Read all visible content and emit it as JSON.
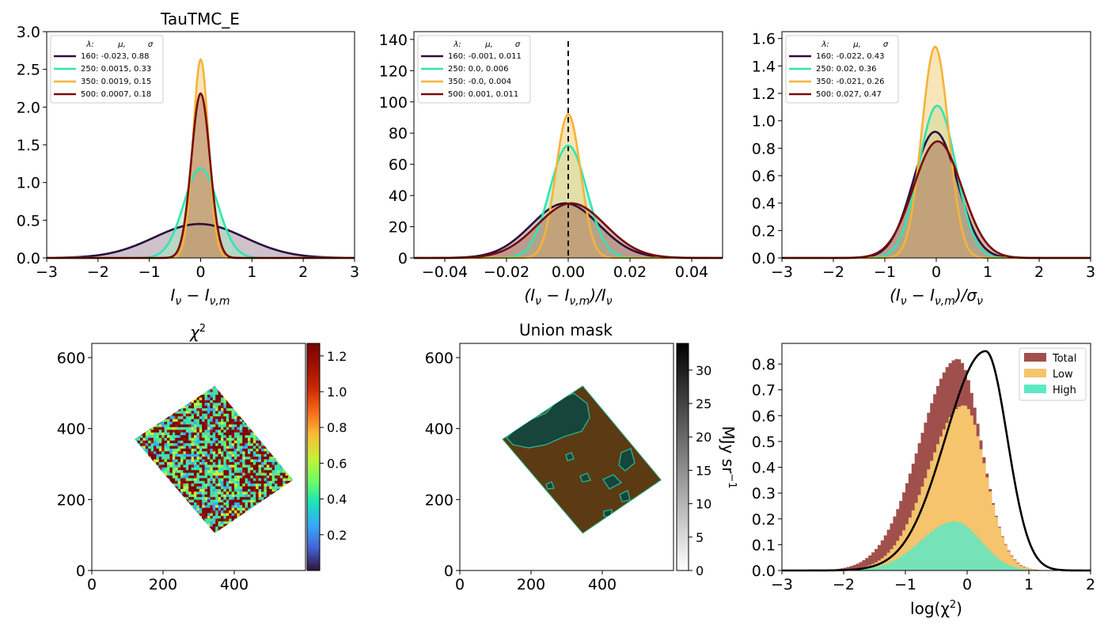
{
  "figure": {
    "panels": [
      {
        "id": "p1",
        "title": "TauTMC_E",
        "xlabel_html": "I<tspan font-size='14' baseline-shift='sub'>ν</tspan> − I<tspan font-size='14' baseline-shift='sub'>ν,m</tspan>",
        "xlabel": "I_ν − I_ν,m",
        "xlim": [
          -3,
          3
        ],
        "ylim": [
          0,
          3.0
        ],
        "xticks": [
          -3,
          -2,
          -1,
          0,
          1,
          2,
          3
        ],
        "xticklabels": [
          "−3",
          "−2",
          "−1",
          "0",
          "1",
          "2",
          "3"
        ],
        "yticks": [
          0,
          0.5,
          1.0,
          1.5,
          2.0,
          2.5,
          3.0
        ],
        "yticklabels": [
          "0.0",
          "0.5",
          "1.0",
          "1.5",
          "2.0",
          "2.5",
          "3.0"
        ],
        "legend_header": [
          "λ:",
          "μ,",
          "σ"
        ],
        "legend": [
          "160: -0.023,  0.88",
          "250: 0.0015,  0.33",
          "350: 0.0019,  0.15",
          "500: 0.0007,  0.18"
        ],
        "fits": [
          {
            "lambda": 160,
            "mu": -0.023,
            "sigma": 0.88
          },
          {
            "lambda": 250,
            "mu": 0.0015,
            "sigma": 0.33
          },
          {
            "lambda": 350,
            "mu": 0.0019,
            "sigma": 0.15
          },
          {
            "lambda": 500,
            "mu": 0.0007,
            "sigma": 0.18
          }
        ]
      },
      {
        "id": "p2",
        "title": "",
        "xlabel": "(I_ν − I_ν,m)/I_ν",
        "xlim": [
          -0.05,
          0.05
        ],
        "ylim": [
          0,
          145
        ],
        "xticks": [
          -0.04,
          -0.02,
          0.0,
          0.02,
          0.04
        ],
        "xticklabels": [
          "−0.04",
          "−0.02",
          "0.00",
          "0.02",
          "0.04"
        ],
        "yticks": [
          0,
          20,
          40,
          60,
          80,
          100,
          120,
          140
        ],
        "yticklabels": [
          "0",
          "20",
          "40",
          "60",
          "80",
          "100",
          "120",
          "140"
        ],
        "legend_header": [
          "λ:",
          "μ,",
          "σ"
        ],
        "legend": [
          "160: -0.001,  0.011",
          "250: 0.0,  0.006",
          "350: -0.0,  0.004",
          "500: 0.001,  0.011"
        ],
        "fits": [
          {
            "lambda": 160,
            "mu": -0.001,
            "sigma": 0.011
          },
          {
            "lambda": 250,
            "mu": 0.0,
            "sigma": 0.006
          },
          {
            "lambda": 350,
            "mu": -0.0,
            "sigma": 0.004
          },
          {
            "lambda": 500,
            "mu": 0.001,
            "sigma": 0.011
          }
        ]
      },
      {
        "id": "p3",
        "title": "",
        "xlabel": "(I_ν − I_ν,m)/σ_ν",
        "xlim": [
          -3,
          3
        ],
        "ylim": [
          0,
          1.65
        ],
        "xticks": [
          -3,
          -2,
          -1,
          0,
          1,
          2,
          3
        ],
        "xticklabels": [
          "−3",
          "−2",
          "−1",
          "0",
          "1",
          "2",
          "3"
        ],
        "yticks": [
          0,
          0.2,
          0.4,
          0.6,
          0.8,
          1.0,
          1.2,
          1.4,
          1.6
        ],
        "yticklabels": [
          "0.0",
          "0.2",
          "0.4",
          "0.6",
          "0.8",
          "1.0",
          "1.2",
          "1.4",
          "1.6"
        ],
        "legend_header": [
          "λ:",
          "μ,",
          "σ"
        ],
        "legend": [
          "160: -0.022,  0.43",
          "250: 0.02,  0.36",
          "350: -0.021,  0.26",
          "500: 0.027,  0.47"
        ],
        "fits": [
          {
            "lambda": 160,
            "mu": -0.022,
            "sigma": 0.43
          },
          {
            "lambda": 250,
            "mu": 0.02,
            "sigma": 0.36
          },
          {
            "lambda": 350,
            "mu": -0.021,
            "sigma": 0.26
          },
          {
            "lambda": 500,
            "mu": 0.027,
            "sigma": 0.47
          }
        ]
      },
      {
        "id": "p4",
        "title": "χ²",
        "xlim": [
          0,
          600
        ],
        "ylim": [
          0,
          640
        ],
        "xticks": [
          0,
          200,
          400
        ],
        "xticklabels": [
          "0",
          "200",
          "400"
        ],
        "yticks": [
          0,
          200,
          400,
          600
        ],
        "yticklabels": [
          "0",
          "200",
          "400",
          "600"
        ],
        "colorbar": {
          "ticks": [
            0.2,
            0.4,
            0.6,
            0.8,
            1.0,
            1.2
          ],
          "ticklabels": [
            "0.2",
            "0.4",
            "0.6",
            "0.8",
            "1.0",
            "1.2"
          ],
          "range": [
            0,
            1.27
          ]
        }
      },
      {
        "id": "p5",
        "title": "Union mask",
        "xlim": [
          0,
          600
        ],
        "ylim": [
          0,
          640
        ],
        "xticks": [
          0,
          200,
          400
        ],
        "xticklabels": [
          "0",
          "200",
          "400"
        ],
        "yticks": [
          0,
          200,
          400,
          600
        ],
        "yticklabels": [
          "0",
          "200",
          "400",
          "600"
        ],
        "colorbar": {
          "ticks": [
            0,
            5,
            10,
            15,
            20,
            25,
            30
          ],
          "ticklabels": [
            "0",
            "5",
            "10",
            "15",
            "20",
            "25",
            "30"
          ],
          "range": [
            0,
            34
          ],
          "label": "MJy sr⁻¹"
        }
      },
      {
        "id": "p6",
        "title": "",
        "xlabel": "log(χ²)",
        "xlim": [
          -3,
          2
        ],
        "ylim": [
          0,
          0.88
        ],
        "xticks": [
          -3,
          -2,
          -1,
          0,
          1,
          2
        ],
        "xticklabels": [
          "−3",
          "−2",
          "−1",
          "0",
          "1",
          "2"
        ],
        "yticks": [
          0,
          0.1,
          0.2,
          0.3,
          0.4,
          0.5,
          0.6,
          0.7,
          0.8
        ],
        "yticklabels": [
          "0.0",
          "0.1",
          "0.2",
          "0.3",
          "0.4",
          "0.5",
          "0.6",
          "0.7",
          "0.8"
        ],
        "legend": [
          "Total",
          "Low",
          "High"
        ]
      }
    ]
  },
  "chart_data": [
    {
      "type": "area",
      "title": "TauTMC_E",
      "xlabel": "I_ν − I_ν,m",
      "xlim": [
        -3,
        3
      ],
      "ylim": [
        0,
        3.0
      ],
      "series": [
        {
          "name": "160: -0.023,  0.88",
          "mu": -0.023,
          "sigma": 0.88,
          "peak": 0.45
        },
        {
          "name": "250: 0.0015,  0.33",
          "mu": 0.0015,
          "sigma": 0.33,
          "peak": 1.19
        },
        {
          "name": "350: 0.0019,  0.15",
          "mu": 0.0019,
          "sigma": 0.15,
          "peak": 2.63
        },
        {
          "name": "500: 0.0007,  0.18",
          "mu": 0.0007,
          "sigma": 0.18,
          "peak": 2.18
        }
      ]
    },
    {
      "type": "area",
      "xlabel": "(I_ν − I_ν,m)/I_ν",
      "xlim": [
        -0.05,
        0.05
      ],
      "ylim": [
        0,
        145
      ],
      "vline_x": 0,
      "series": [
        {
          "name": "160: -0.001,  0.011",
          "mu": -0.001,
          "sigma": 0.011,
          "peak": 35
        },
        {
          "name": "250: 0.0,  0.006",
          "mu": 0.0,
          "sigma": 0.006,
          "peak": 72
        },
        {
          "name": "350: -0.0,  0.004",
          "mu": 0.0,
          "sigma": 0.004,
          "peak": 92
        },
        {
          "name": "500: 0.001,  0.011",
          "mu": 0.001,
          "sigma": 0.011,
          "peak": 35
        }
      ]
    },
    {
      "type": "area",
      "xlabel": "(I_ν − I_ν,m)/σ_ν",
      "xlim": [
        -3,
        3
      ],
      "ylim": [
        0,
        1.65
      ],
      "series": [
        {
          "name": "160: -0.022,  0.43",
          "mu": -0.022,
          "sigma": 0.43,
          "peak": 0.92
        },
        {
          "name": "250: 0.02,  0.36",
          "mu": 0.02,
          "sigma": 0.36,
          "peak": 1.11
        },
        {
          "name": "350: -0.021,  0.26",
          "mu": -0.021,
          "sigma": 0.26,
          "peak": 1.54
        },
        {
          "name": "500: 0.027,  0.47",
          "mu": 0.027,
          "sigma": 0.47,
          "peak": 0.85
        }
      ]
    },
    {
      "type": "heatmap",
      "title": "χ²",
      "xlim": [
        0,
        600
      ],
      "ylim": [
        0,
        640
      ],
      "footprint": [
        [
          120,
          370
        ],
        [
          345,
          520
        ],
        [
          565,
          255
        ],
        [
          345,
          105
        ]
      ],
      "colorbar_range": [
        0,
        1.27
      ]
    },
    {
      "type": "heatmap",
      "title": "Union mask",
      "xlim": [
        0,
        600
      ],
      "ylim": [
        0,
        640
      ],
      "footprint": [
        [
          120,
          370
        ],
        [
          345,
          520
        ],
        [
          565,
          255
        ],
        [
          345,
          105
        ]
      ],
      "colorbar_range": [
        0,
        34
      ],
      "colorbar_label": "MJy sr⁻¹"
    },
    {
      "type": "bar",
      "xlabel": "log(χ²)",
      "xlim": [
        -3,
        2
      ],
      "ylim": [
        0,
        0.88
      ],
      "bins": {
        "start": -3.0,
        "width": 0.05
      },
      "series": [
        {
          "name": "Total",
          "mu": -0.15,
          "sigma_left": 0.62,
          "sigma_right": 0.38,
          "peak": 0.82
        },
        {
          "name": "Low",
          "mu": -0.05,
          "sigma_left": 0.58,
          "sigma_right": 0.35,
          "peak": 0.64
        },
        {
          "name": "High",
          "mu": -0.2,
          "sigma_left": 0.55,
          "sigma_right": 0.42,
          "peak": 0.19
        }
      ],
      "reference_curve": {
        "mu": 0.3,
        "sigma_left": 0.65,
        "sigma_right": 0.35,
        "peak": 0.85
      }
    }
  ],
  "colors": {
    "c160": "#2b0f3e",
    "c250": "#2ee6b2",
    "c350": "#f5b33a",
    "c500": "#7a0a0a",
    "fill160": "#a58fa0",
    "fill250": "#a5e8c0",
    "fill350": "#f2cf7d",
    "fill500": "#b07a5d",
    "total": "#a0504c",
    "low": "#f5c46c",
    "high": "#5ee8c4",
    "mask_bg": "#5c3a13",
    "mask_region": "#17443b",
    "mask_edge": "#25b28a"
  }
}
